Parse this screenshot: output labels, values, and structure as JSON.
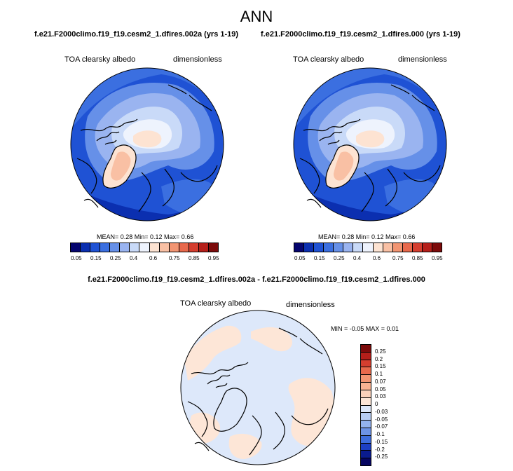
{
  "title": "ANN",
  "panels": [
    {
      "case_label": "f.e21.F2000climo.f19_f19.cesm2_1.dfires.002a (yrs 1-19)",
      "variable": "TOA clearsky albedo",
      "units": "dimensionless",
      "stats": "MEAN=  0.28  Min=  0.12  Max=  0.66"
    },
    {
      "case_label": "f.e21.F2000climo.f19_f19.cesm2_1.dfires.000 (yrs 1-19)",
      "variable": "TOA clearsky albedo",
      "units": "dimensionless",
      "stats": "MEAN=  0.28  Min=  0.12  Max=  0.66"
    }
  ],
  "colorbar": {
    "colors": [
      "#05056e",
      "#0b2fb0",
      "#1f52d4",
      "#3b6fe0",
      "#6690e8",
      "#9ab4f0",
      "#c9daf8",
      "#eef3fd",
      "#fde3d2",
      "#f9c0a4",
      "#f29572",
      "#e8694c",
      "#d53e2f",
      "#b51f1a",
      "#7c0b0b"
    ],
    "ticks": [
      "0.05",
      "0.15",
      "0.25",
      "0.4",
      "0.6",
      "0.75",
      "0.85",
      "0.95"
    ]
  },
  "difference": {
    "title": "f.e21.F2000climo.f19_f19.cesm2_1.dfires.002a - f.e21.F2000climo.f19_f19.cesm2_1.dfires.000",
    "variable": "TOA clearsky albedo",
    "units": "dimensionless",
    "stats": "MIN =  -0.05 MAX =   0.01",
    "colorbar": {
      "colors": [
        "#7c0b0b",
        "#b51f1a",
        "#d53e2f",
        "#e8694c",
        "#f29572",
        "#f9b392",
        "#fbd2bb",
        "#fde6d7",
        "#dde8fa",
        "#b7cdf4",
        "#93b2ee",
        "#6d93e6",
        "#3e6ddd",
        "#1d3fc4",
        "#0a1b8e",
        "#060560"
      ],
      "ticks": [
        "0.25",
        "0.2",
        "0.15",
        "0.1",
        "0.07",
        "0.05",
        "0.03",
        "0",
        "-0.03",
        "-0.05",
        "-0.07",
        "-0.1",
        "-0.15",
        "-0.2",
        "-0.25"
      ]
    }
  }
}
